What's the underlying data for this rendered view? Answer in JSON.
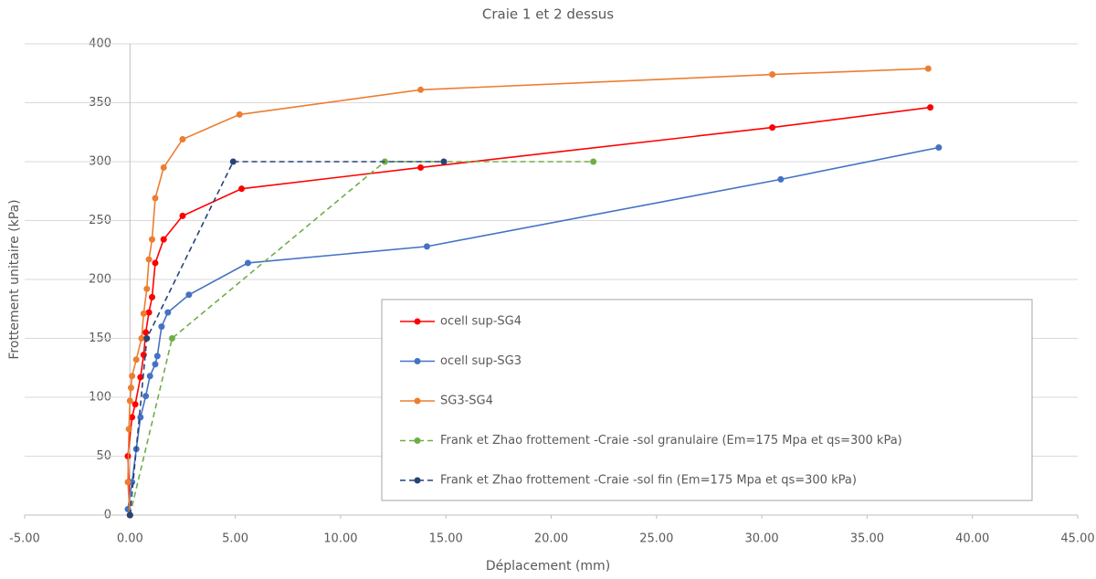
{
  "chart_data": {
    "type": "scatter",
    "title": "Craie 1 et 2 dessus",
    "x_label": "Déplacement (mm)",
    "y_label": "Frottement unitaire (kPa)",
    "xlim": [
      -5,
      45
    ],
    "ylim": [
      0,
      400
    ],
    "xticks": [
      {
        "value": -5,
        "label": "-5.00"
      },
      {
        "value": 0,
        "label": "0.00"
      },
      {
        "value": 5,
        "label": "5.00"
      },
      {
        "value": 10,
        "label": "10.00"
      },
      {
        "value": 15,
        "label": "15.00"
      },
      {
        "value": 20,
        "label": "20.00"
      },
      {
        "value": 25,
        "label": "25.00"
      },
      {
        "value": 30,
        "label": "30.00"
      },
      {
        "value": 35,
        "label": "35.00"
      },
      {
        "value": 40,
        "label": "40.00"
      },
      {
        "value": 45,
        "label": "45.00"
      }
    ],
    "yticks": [
      0,
      50,
      100,
      150,
      200,
      250,
      300,
      350,
      400
    ],
    "grid": true,
    "series": [
      {
        "name": "ocell sup-SG4",
        "color": "#ff0000",
        "dashed": false,
        "x": [
          0,
          -0.05,
          -0.1,
          0.1,
          0.25,
          0.5,
          0.65,
          0.75,
          0.9,
          1.05,
          1.2,
          1.6,
          2.5,
          5.3,
          13.8,
          30.5,
          38.0
        ],
        "values": [
          0,
          28,
          50,
          83,
          94,
          117,
          136,
          155,
          172,
          185,
          214,
          234,
          254,
          277,
          295,
          329,
          346
        ]
      },
      {
        "name": "ocell sup-SG3",
        "color": "#4472c4",
        "dashed": false,
        "x": [
          0,
          -0.1,
          0.1,
          0.3,
          0.5,
          0.75,
          0.95,
          1.2,
          1.3,
          1.5,
          1.8,
          2.8,
          5.6,
          14.1,
          30.9,
          38.4
        ],
        "values": [
          0,
          5,
          28,
          56,
          83,
          101,
          118,
          128,
          135,
          160,
          172,
          187,
          214,
          228,
          285,
          312
        ]
      },
      {
        "name": "SG3-SG4",
        "color": "#ed7d31",
        "dashed": false,
        "x": [
          0,
          -0.1,
          -0.05,
          0,
          0.05,
          0.1,
          0.3,
          0.55,
          0.65,
          0.8,
          0.9,
          1.05,
          1.2,
          1.6,
          2.5,
          5.2,
          13.8,
          30.5,
          37.9
        ],
        "values": [
          0,
          28,
          73,
          97,
          108,
          118,
          132,
          150,
          171,
          192,
          217,
          234,
          269,
          295,
          319,
          340,
          361,
          374,
          379
        ]
      },
      {
        "name": "Frank et Zhao frottement -Craie -sol granulaire (Em=175 Mpa et qs=300 kPa)",
        "color": "#70ad47",
        "dashed": true,
        "x": [
          0,
          2.0,
          12.1,
          22.0
        ],
        "values": [
          0,
          150,
          300,
          300
        ]
      },
      {
        "name": "Frank et Zhao frottement -Craie -sol fin (Em=175 Mpa et qs=300 kPa)",
        "color": "#264478",
        "dashed": true,
        "x": [
          0,
          0.8,
          4.9,
          14.9
        ],
        "values": [
          0,
          150,
          300,
          300
        ]
      }
    ]
  }
}
